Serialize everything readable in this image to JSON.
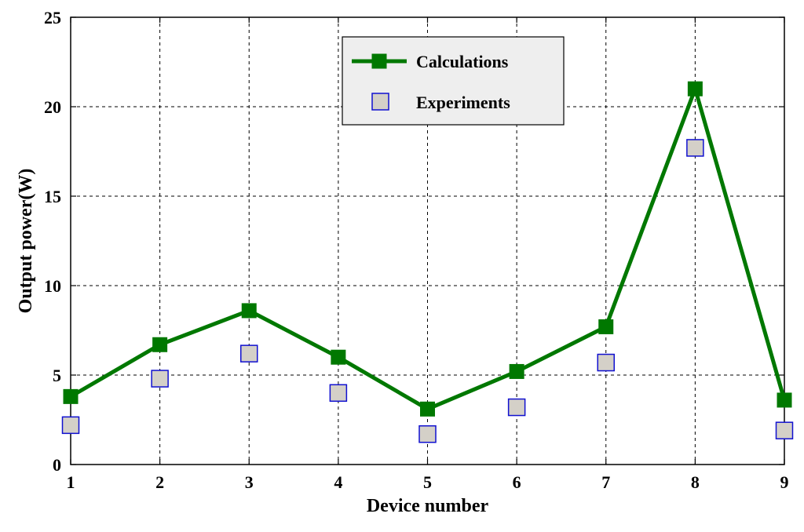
{
  "chart_data": {
    "type": "line",
    "xlabel": "Device number",
    "ylabel": "Output power(W)",
    "x": [
      1,
      2,
      3,
      4,
      5,
      6,
      7,
      8,
      9
    ],
    "xlim": [
      1,
      9
    ],
    "ylim": [
      0,
      25
    ],
    "xticks": [
      "1",
      "2",
      "3",
      "4",
      "5",
      "6",
      "7",
      "8",
      "9"
    ],
    "yticks": [
      "0",
      "5",
      "10",
      "15",
      "20",
      "25"
    ],
    "grid": true,
    "legend_position": "top-center",
    "series": [
      {
        "name": "Calculations",
        "style": "line-with-square-markers",
        "color": "#007800",
        "values": [
          3.8,
          6.7,
          8.6,
          6.0,
          3.1,
          5.2,
          7.7,
          21.0,
          3.6
        ]
      },
      {
        "name": "Experiments",
        "style": "square-markers-only",
        "color": "#1010d0",
        "fill": "#d4d0c8",
        "values": [
          2.2,
          4.8,
          6.2,
          4.0,
          1.7,
          3.2,
          5.7,
          17.7,
          1.9
        ]
      }
    ]
  }
}
